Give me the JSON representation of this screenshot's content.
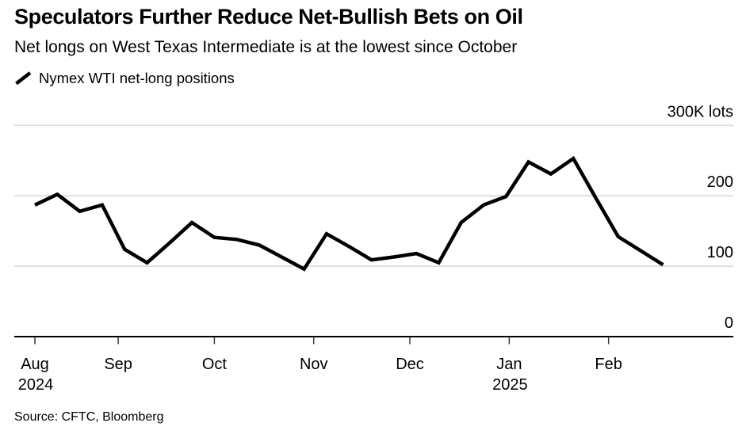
{
  "header": {
    "title": "Speculators Further Reduce Net-Bullish Bets on Oil",
    "subtitle": "Net longs on West Texas Intermediate is at the lowest since October",
    "legend": {
      "label": "Nymex WTI net-long positions",
      "marker": "line-slash-icon",
      "marker_color": "#000000"
    }
  },
  "chart_data": {
    "type": "line",
    "title": "Nymex WTI net-long positions",
    "unit": "K lots",
    "ylim": [
      0,
      300
    ],
    "grid": "horizontal",
    "legend_position": "top-left",
    "line_color": "#000000",
    "grid_color": "#dedede",
    "background_color": "#ffffff",
    "dates": [
      "2024-08-06",
      "2024-08-13",
      "2024-08-20",
      "2024-08-27",
      "2024-09-03",
      "2024-09-10",
      "2024-09-17",
      "2024-09-24",
      "2024-10-01",
      "2024-10-08",
      "2024-10-15",
      "2024-10-22",
      "2024-10-29",
      "2024-11-05",
      "2024-11-12",
      "2024-11-19",
      "2024-11-26",
      "2024-12-03",
      "2024-12-10",
      "2024-12-17",
      "2024-12-24",
      "2024-12-31",
      "2025-01-07",
      "2025-01-14",
      "2025-01-21",
      "2025-01-28",
      "2025-02-04",
      "2025-02-11",
      "2025-02-18"
    ],
    "values": [
      187,
      202,
      178,
      187,
      124,
      105,
      133,
      162,
      141,
      138,
      130,
      113,
      96,
      146,
      128,
      109,
      113,
      118,
      105,
      162,
      187,
      199,
      248,
      231,
      253,
      197,
      142,
      122,
      102
    ],
    "y_ticks": [
      {
        "value": 0,
        "label": "0"
      },
      {
        "value": 100,
        "label": "100"
      },
      {
        "value": 200,
        "label": "200"
      },
      {
        "value": 300,
        "label": "300K lots"
      }
    ],
    "x_ticks": [
      {
        "date": "2024-08-06",
        "label": "Aug",
        "year": "2024"
      },
      {
        "date": "2024-09-01",
        "label": "Sep"
      },
      {
        "date": "2024-10-01",
        "label": "Oct"
      },
      {
        "date": "2024-11-01",
        "label": "Nov"
      },
      {
        "date": "2024-12-01",
        "label": "Dec"
      },
      {
        "date": "2025-01-01",
        "label": "Jan",
        "year": "2025"
      },
      {
        "date": "2025-02-01",
        "label": "Feb"
      }
    ]
  },
  "footer": {
    "source": "Source: CFTC, Bloomberg"
  }
}
